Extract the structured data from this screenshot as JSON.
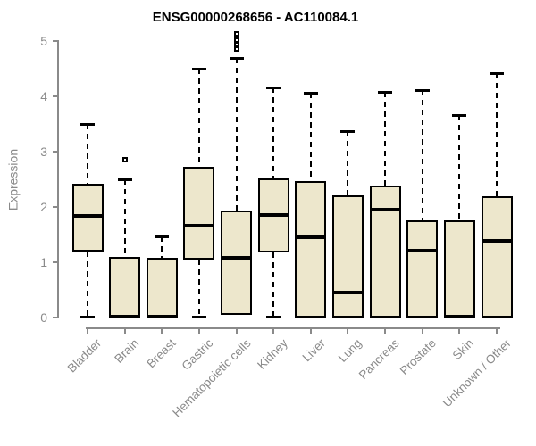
{
  "chart_data": {
    "type": "boxplot",
    "title": "ENSG00000268656 - AC110084.1",
    "xlabel": "",
    "ylabel": "Expression",
    "ylim": [
      0,
      5
    ],
    "y_ticks": [
      "0",
      "1",
      "2",
      "3",
      "4",
      "5"
    ],
    "grid": false,
    "legend": "none",
    "categories": [
      "Bladder",
      "Brain",
      "Breast",
      "Gastric",
      "Hematopoietic cells",
      "Kidney",
      "Liver",
      "Lung",
      "Pancreas",
      "Prostate",
      "Skin",
      "Unknown / Other"
    ],
    "series": [
      {
        "name": "Bladder",
        "min": 0,
        "q1": 1.19,
        "median": 1.84,
        "q3": 2.42,
        "max": 3.5,
        "outliers": []
      },
      {
        "name": "Brain",
        "min": 0,
        "q1": 0,
        "median": 0.02,
        "q3": 1.09,
        "max": 2.5,
        "outliers": [
          2.85
        ]
      },
      {
        "name": "Breast",
        "min": 0,
        "q1": 0,
        "median": 0.02,
        "q3": 1.08,
        "max": 1.46,
        "outliers": []
      },
      {
        "name": "Gastric",
        "min": 0,
        "q1": 1.05,
        "median": 1.66,
        "q3": 2.73,
        "max": 4.5,
        "outliers": []
      },
      {
        "name": "Hematopoietic cells",
        "min": 0.05,
        "q1": 0.05,
        "median": 1.08,
        "q3": 1.93,
        "max": 4.7,
        "outliers": [
          4.85,
          4.94,
          5.02,
          5.13
        ]
      },
      {
        "name": "Kidney",
        "min": 0,
        "q1": 1.17,
        "median": 1.85,
        "q3": 2.52,
        "max": 4.16,
        "outliers": []
      },
      {
        "name": "Liver",
        "min": 0,
        "q1": 0,
        "median": 1.45,
        "q3": 2.47,
        "max": 4.07,
        "outliers": []
      },
      {
        "name": "Lung",
        "min": 0,
        "q1": 0,
        "median": 0.45,
        "q3": 2.21,
        "max": 3.37,
        "outliers": []
      },
      {
        "name": "Pancreas",
        "min": 0,
        "q1": 0,
        "median": 1.95,
        "q3": 2.39,
        "max": 4.08,
        "outliers": []
      },
      {
        "name": "Prostate",
        "min": 0,
        "q1": 0,
        "median": 1.21,
        "q3": 1.76,
        "max": 4.12,
        "outliers": []
      },
      {
        "name": "Skin",
        "min": 0,
        "q1": 0,
        "median": 0.02,
        "q3": 1.76,
        "max": 3.66,
        "outliers": []
      },
      {
        "name": "Unknown / Other",
        "min": 0,
        "q1": 0,
        "median": 1.38,
        "q3": 2.19,
        "max": 4.42,
        "outliers": []
      }
    ],
    "colors": {
      "box_fill": "#EDE7CC",
      "line": "#000000",
      "axis": "#8A8A8A",
      "title_text": "#000000"
    }
  }
}
